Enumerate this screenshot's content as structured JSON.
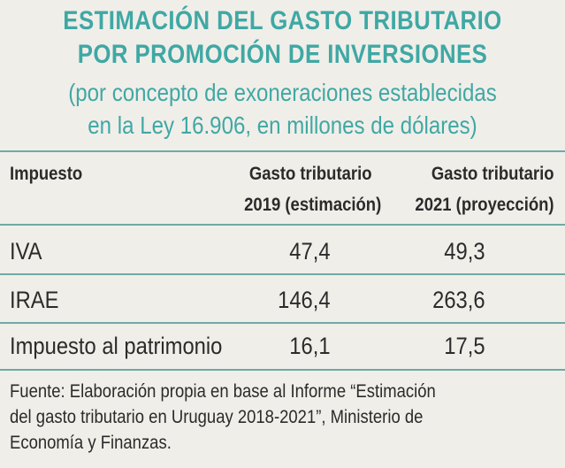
{
  "title": {
    "line1": "ESTIMACIÓN DEL GASTO TRIBUTARIO",
    "line2": "POR PROMOCIÓN DE INVERSIONES"
  },
  "subtitle": {
    "line1": "(por concepto de exoneraciones establecidas",
    "line2": "en la Ley 16.906, en millones de dólares)"
  },
  "table": {
    "headers": {
      "impuesto": "Impuesto",
      "col1_line1": "Gasto tributario",
      "col1_line2": "2019 (estimación)",
      "col2_line1": "Gasto tributario",
      "col2_line2": "2021 (proyección)"
    },
    "rows": [
      {
        "name": "IVA",
        "v2019": "47,4",
        "v2021": "49,3"
      },
      {
        "name": "IRAE",
        "v2019": "146,4",
        "v2021": "263,6"
      },
      {
        "name": "Impuesto al patrimonio",
        "v2019": "16,1",
        "v2021": "17,5"
      }
    ]
  },
  "footnote": {
    "line1": "Fuente: Elaboración propia en base al Informe “Estimación",
    "line2": "del gasto tributario en Uruguay 2018-2021”, Ministerio de",
    "line3": "Economía y Finanzas."
  },
  "colors": {
    "accent": "#3fa8a4",
    "rule": "#6fa9a6",
    "background": "#f0eee9",
    "text": "#2b2b2b"
  }
}
